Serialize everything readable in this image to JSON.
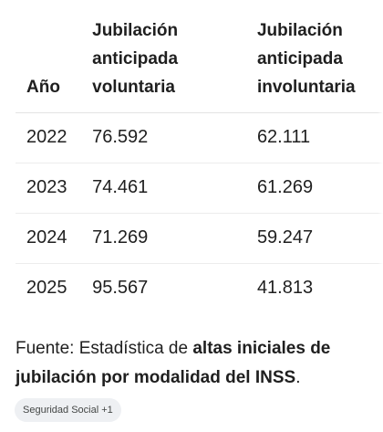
{
  "table": {
    "headers": {
      "year": "Año",
      "voluntary": "Jubilación anticipada voluntaria",
      "involuntary": "Jubilación anticipada involuntaria"
    },
    "rows": [
      {
        "year": "2022",
        "voluntary": "76.592",
        "involuntary": "62.111"
      },
      {
        "year": "2023",
        "voluntary": "74.461",
        "involuntary": "61.269"
      },
      {
        "year": "2024",
        "voluntary": "71.269",
        "involuntary": "59.247"
      },
      {
        "year": "2025",
        "voluntary": "95.567",
        "involuntary": "41.813"
      }
    ]
  },
  "source": {
    "prefix": "Fuente: Estadística de ",
    "bold": "altas iniciales de jubilación por modalidad del INSS",
    "suffix": "."
  },
  "chip": {
    "label": "Seguridad Social +1"
  }
}
